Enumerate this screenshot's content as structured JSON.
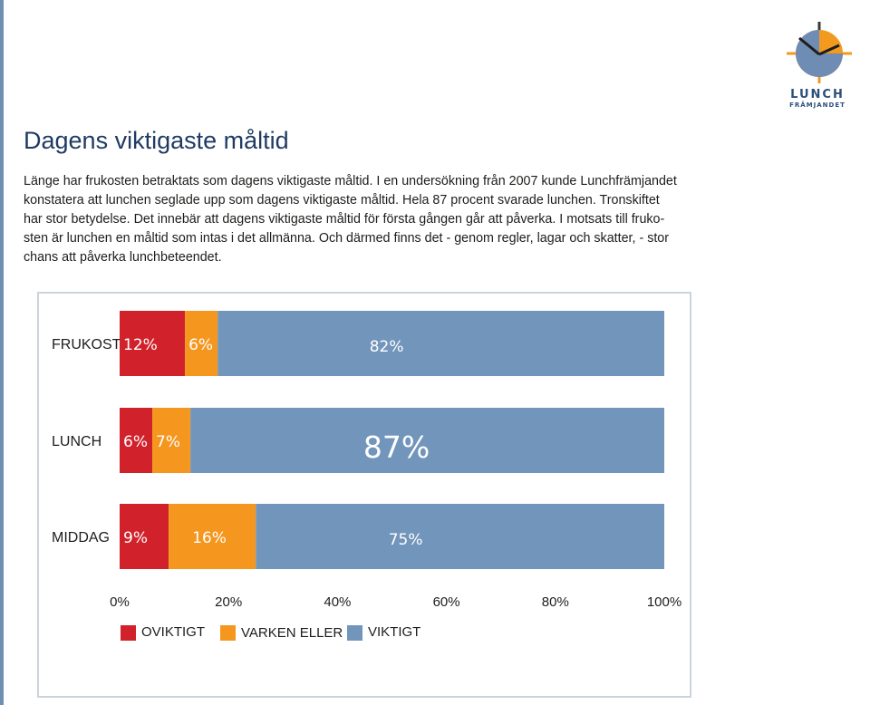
{
  "page": {
    "title": "Dagens viktigaste måltid",
    "intro_lines": [
      "Länge har frukosten betraktats som dagens viktigaste måltid. I en undersökning från 2007 kunde Lunchfrämjandet",
      "konstatera att lunchen seglade upp som dagens viktigaste måltid. Hela 87 procent svarade lunchen. Tronskiftet",
      "har stor betydelse. Det innebär att dagens viktigaste måltid för första gången går att påverka. I motsats till fruko-",
      "sten är lunchen en måltid som intas i det allmänna. Och därmed finns det - genom regler, lagar och skatter, - stor",
      "chans att påverka lunchbeteendet."
    ]
  },
  "logo": {
    "word": "LUNCH",
    "sub": "FRÄMJANDET",
    "colors": {
      "clock": "#f29a1f",
      "face": "#6e8cb4",
      "text": "#2c4f7a"
    }
  },
  "chart_data": {
    "type": "bar",
    "orientation": "horizontal",
    "stacked": true,
    "categories": [
      "FRUKOST",
      "LUNCH",
      "MIDDAG"
    ],
    "series": [
      {
        "name": "OVIKTIGT",
        "color": "#d1222b",
        "values": [
          12,
          6,
          9
        ],
        "labels": [
          "12%",
          "6%",
          "9%"
        ]
      },
      {
        "name": "VARKEN ELLER",
        "color": "#f5961e",
        "values": [
          6,
          7,
          16
        ],
        "labels": [
          "6%",
          "7%",
          "16%"
        ]
      },
      {
        "name": "VIKTIGT",
        "color": "#7295bb",
        "values": [
          82,
          87,
          75
        ],
        "labels": [
          "82%",
          "87%",
          "75%"
        ]
      }
    ],
    "xlim": [
      0,
      100
    ],
    "x_ticks": [
      "0%",
      "20%",
      "40%",
      "60%",
      "80%",
      "100%"
    ],
    "x_tick_values": [
      0,
      20,
      40,
      60,
      80,
      100
    ],
    "legend_position": "bottom",
    "grid": false
  }
}
